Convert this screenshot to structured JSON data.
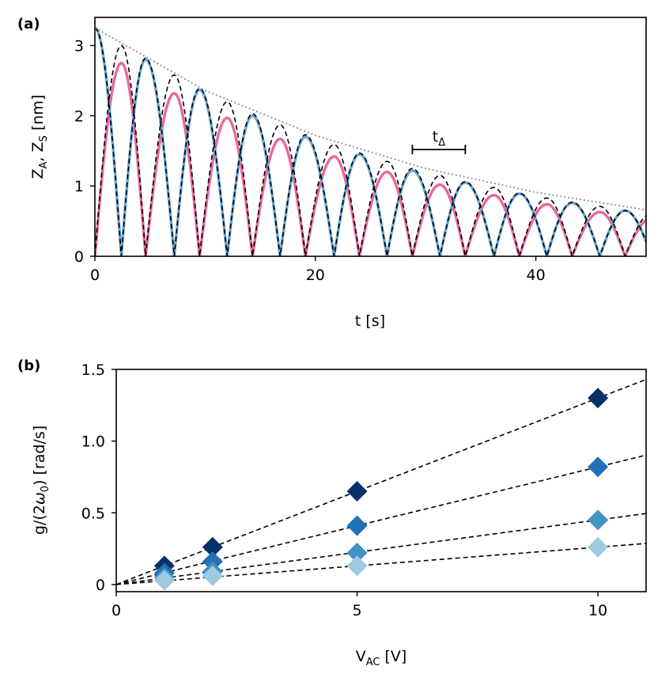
{
  "chart_data": [
    {
      "type": "line",
      "panel_label": "(a)",
      "xlabel": "t [s]",
      "ylabel": {
        "main": "Z",
        "sub_a": "A",
        "sep": ", ",
        "sub_s": "S",
        "unit": " [nm]"
      },
      "xlim": [
        0,
        50
      ],
      "ylim": [
        0,
        3.4
      ],
      "xticks": [
        0,
        20,
        40
      ],
      "yticks": [
        0,
        1,
        2,
        3
      ],
      "grid": false,
      "series": [
        {
          "role": "mode-A",
          "color": "#6aa6d4",
          "peaks_t": [
            0,
            4.6,
            9.5,
            14.3,
            19.1,
            24.0,
            28.8,
            33.6,
            38.5,
            43.3,
            48.1
          ],
          "peaks_z": [
            3.25,
            2.8,
            2.37,
            2.0,
            1.7,
            1.45,
            1.22,
            1.05,
            0.89,
            0.76,
            0.65
          ],
          "zeros_t": [
            2.4,
            7.2,
            12.0,
            16.8,
            21.7,
            26.5,
            31.3,
            36.2,
            41.0,
            45.8
          ]
        },
        {
          "role": "mode-S",
          "color": "#e9679d",
          "peaks_t": [
            2.4,
            7.2,
            12.0,
            16.8,
            21.7,
            26.5,
            31.3,
            36.2,
            41.0,
            45.8
          ],
          "peaks_z": [
            2.75,
            2.32,
            1.97,
            1.67,
            1.42,
            1.2,
            1.02,
            0.87,
            0.74,
            0.63
          ],
          "zeros_t": [
            0,
            4.6,
            9.5,
            14.3,
            19.1,
            24.0,
            28.8,
            33.6,
            38.5,
            43.3,
            48.1
          ]
        },
        {
          "role": "model-dashed",
          "color": "#000000",
          "peaks_t": [
            0,
            2.4,
            4.6,
            7.2,
            9.5,
            12.0,
            14.3,
            16.8,
            19.1,
            21.7,
            24.0,
            26.5,
            28.8,
            31.3,
            33.6,
            36.2,
            38.5,
            41.0,
            43.3,
            45.8,
            48.1
          ],
          "peaks_z": [
            3.25,
            3.0,
            2.82,
            2.58,
            2.39,
            2.2,
            2.03,
            1.87,
            1.73,
            1.59,
            1.47,
            1.35,
            1.25,
            1.15,
            1.06,
            0.98,
            0.9,
            0.83,
            0.77,
            0.71,
            0.65
          ]
        },
        {
          "role": "envelope-dotted",
          "color": "#999999",
          "x": [
            0,
            10,
            20,
            30,
            40,
            50
          ],
          "y": [
            3.25,
            2.36,
            1.72,
            1.25,
            0.91,
            0.66
          ]
        }
      ],
      "annotation": {
        "text": "t",
        "sub": "Δ",
        "x_start": 28.8,
        "x_end": 33.6,
        "y": 1.52
      }
    },
    {
      "type": "scatter",
      "panel_label": "(b)",
      "xlabel": {
        "main": "V",
        "sub": "AC",
        "unit": " [V]"
      },
      "ylabel": {
        "pre": "g/(2",
        "omega": "ω",
        "sub": "0",
        "post": ") [rad/s]"
      },
      "xlim": [
        0,
        11
      ],
      "ylim": [
        -0.05,
        1.5
      ],
      "xticks": [
        0,
        5,
        10
      ],
      "yticks": [
        0,
        0.5,
        1.0,
        1.5
      ],
      "ytick_labels": [
        "0",
        "0.5",
        "1.0",
        "1.5"
      ],
      "grid": false,
      "marker": "diamond",
      "series": [
        {
          "color": "#08306b",
          "x": [
            1,
            2,
            5,
            10
          ],
          "y": [
            0.13,
            0.26,
            0.65,
            1.3
          ],
          "slope": 0.13
        },
        {
          "color": "#2171b5",
          "x": [
            1,
            2,
            5,
            10
          ],
          "y": [
            0.08,
            0.16,
            0.41,
            0.82
          ],
          "slope": 0.082
        },
        {
          "color": "#4292c6",
          "x": [
            1,
            2,
            5,
            10
          ],
          "y": [
            0.05,
            0.09,
            0.22,
            0.45
          ],
          "slope": 0.045
        },
        {
          "color": "#9ecae1",
          "x": [
            1,
            2,
            5,
            10
          ],
          "y": [
            0.03,
            0.06,
            0.13,
            0.26
          ],
          "slope": 0.026
        }
      ]
    }
  ]
}
